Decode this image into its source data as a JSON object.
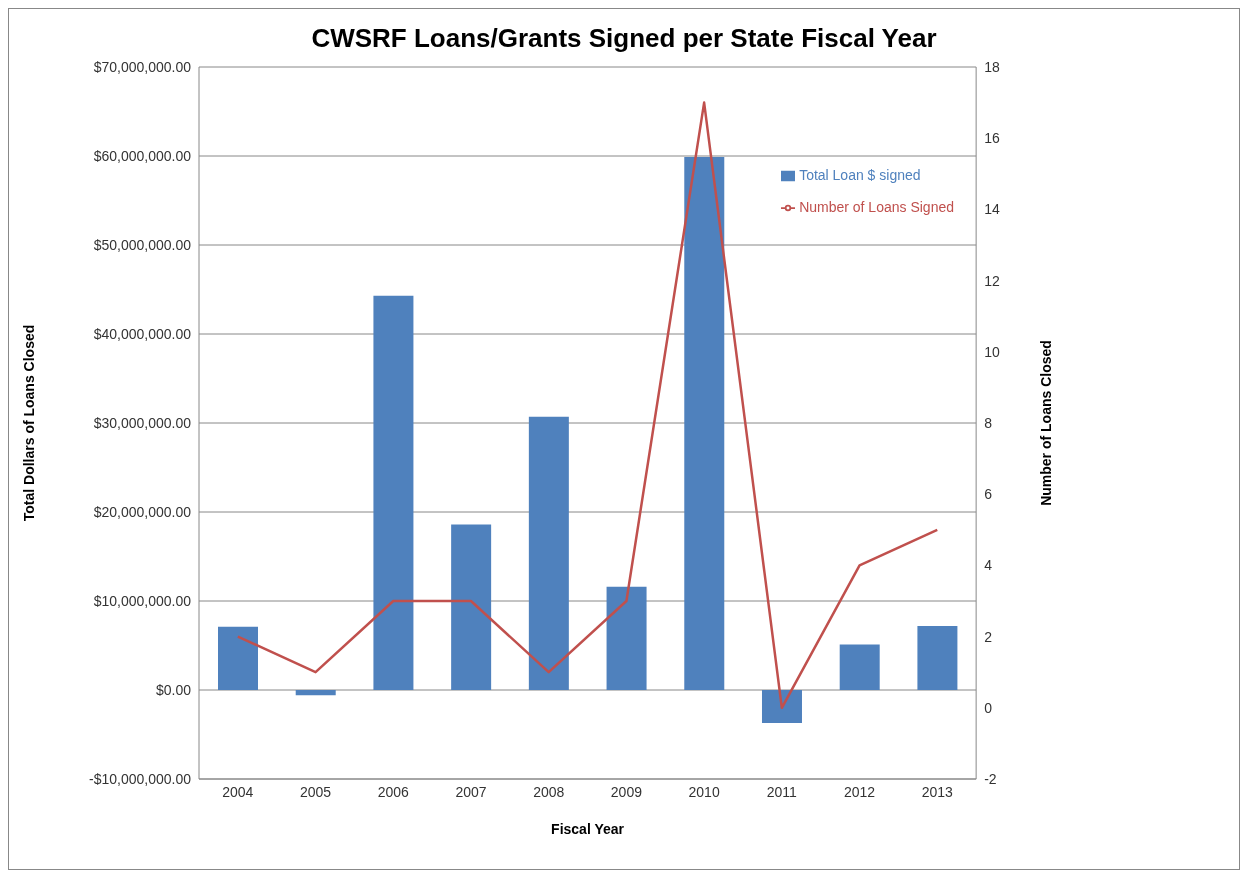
{
  "chart_data": {
    "type": "bar",
    "title": "CWSRF Loans/Grants Signed per State Fiscal Year",
    "xlabel": "Fiscal Year",
    "ylabel": "Total Dollars of Loans Closed",
    "y2label": "Number of Loans Closed",
    "categories": [
      "2004",
      "2005",
      "2006",
      "2007",
      "2008",
      "2009",
      "2010",
      "2011",
      "2012",
      "2013"
    ],
    "series": [
      {
        "name": "Total Loan $ signed",
        "color": "#4f81bd",
        "values": [
          7100000,
          -600000,
          44300000,
          18600000,
          30700000,
          11600000,
          59900000,
          -3700000,
          5100000,
          7200000
        ]
      },
      {
        "name": "Number of Loans Signed",
        "type": "line",
        "axis": "y2",
        "color": "#c0504d",
        "values": [
          2,
          1,
          3,
          3,
          1,
          3,
          17,
          0,
          4,
          5
        ]
      }
    ],
    "ylim": [
      -10000000,
      70000000
    ],
    "yticks": [
      {
        "value": -10000000,
        "label": "-$10,000,000.00"
      },
      {
        "value": 0,
        "label": "$0.00"
      },
      {
        "value": 10000000,
        "label": "$10,000,000.00"
      },
      {
        "value": 20000000,
        "label": "$20,000,000.00"
      },
      {
        "value": 30000000,
        "label": "$30,000,000.00"
      },
      {
        "value": 40000000,
        "label": "$40,000,000.00"
      },
      {
        "value": 50000000,
        "label": "$50,000,000.00"
      },
      {
        "value": 60000000,
        "label": "$60,000,000.00"
      },
      {
        "value": 70000000,
        "label": "$70,000,000.00"
      }
    ],
    "y2lim": [
      -2,
      18
    ],
    "y2ticks": [
      -2,
      0,
      2,
      4,
      6,
      8,
      10,
      12,
      14,
      16,
      18
    ],
    "grid": "y",
    "legend": "top right",
    "marker": "none",
    "line_style": "solid"
  }
}
